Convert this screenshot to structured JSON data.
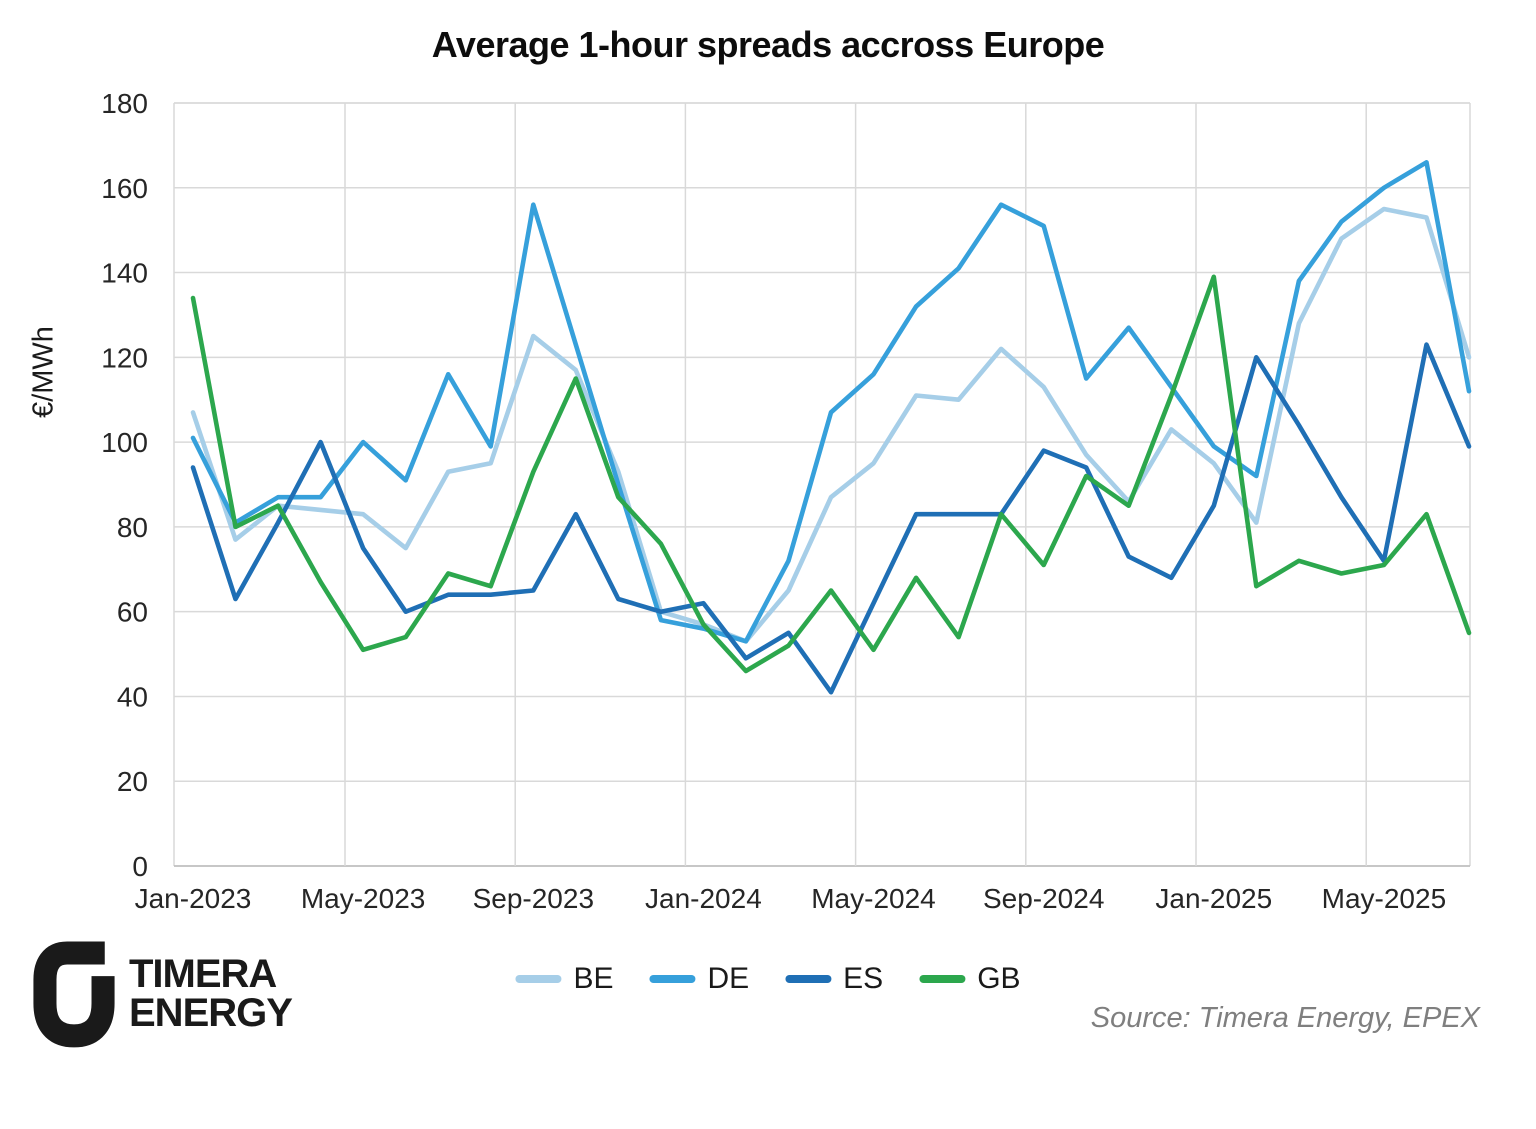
{
  "logo": {
    "line1": "TIMERA",
    "line2": "ENERGY"
  },
  "source_note": "Source: Timera Energy, EPEX",
  "colors": {
    "grid": "#d9d9d9",
    "axis": "#bfbfbf",
    "tick_text": "#262626",
    "title_text": "#0d0d0d",
    "source_text": "#7f7f7f",
    "logo_text": "#1a1a1a"
  },
  "chart_data": {
    "type": "line",
    "title": "Average 1-hour spreads accross Europe",
    "xlabel": "",
    "ylabel": "€/MWh",
    "ylim": [
      0,
      180
    ],
    "ytick_step": 20,
    "grid": true,
    "legend_position": "bottom",
    "categories": [
      "Jan-2023",
      "Feb-2023",
      "Mar-2023",
      "Apr-2023",
      "May-2023",
      "Jun-2023",
      "Jul-2023",
      "Aug-2023",
      "Sep-2023",
      "Oct-2023",
      "Nov-2023",
      "Dec-2023",
      "Jan-2024",
      "Feb-2024",
      "Mar-2024",
      "Apr-2024",
      "May-2024",
      "Jun-2024",
      "Jul-2024",
      "Aug-2024",
      "Sep-2024",
      "Oct-2024",
      "Nov-2024",
      "Dec-2024",
      "Jan-2025",
      "Feb-2025",
      "Mar-2025",
      "Apr-2025",
      "May-2025",
      "Jun-2025",
      "Jul-2025"
    ],
    "xtick_labels": [
      "Jan-2023",
      "May-2023",
      "Sep-2023",
      "Jan-2024",
      "May-2024",
      "Sep-2024",
      "Jan-2025",
      "May-2025"
    ],
    "xtick_indices": [
      0,
      4,
      8,
      12,
      16,
      20,
      24,
      28
    ],
    "series": [
      {
        "name": "BE",
        "color": "#A6CEE8",
        "values": [
          107,
          77,
          85,
          84,
          83,
          75,
          93,
          95,
          125,
          117,
          93,
          60,
          57,
          53,
          65,
          87,
          95,
          111,
          110,
          122,
          113,
          97,
          86,
          103,
          95,
          81,
          128,
          148,
          155,
          153,
          120
        ]
      },
      {
        "name": "DE",
        "color": "#36A0DB",
        "values": [
          101,
          81,
          87,
          87,
          100,
          91,
          116,
          99,
          156,
          123,
          90,
          58,
          56,
          53,
          72,
          107,
          116,
          132,
          141,
          156,
          151,
          115,
          127,
          113,
          99,
          92,
          138,
          152,
          160,
          166,
          112
        ]
      },
      {
        "name": "ES",
        "color": "#1F6FB5",
        "values": [
          94,
          63,
          81,
          100,
          75,
          60,
          64,
          64,
          65,
          83,
          63,
          60,
          62,
          49,
          55,
          41,
          62,
          83,
          83,
          83,
          98,
          94,
          73,
          68,
          85,
          120,
          104,
          87,
          72,
          123,
          99
        ]
      },
      {
        "name": "GB",
        "color": "#2CA74D",
        "values": [
          134,
          80,
          85,
          67,
          51,
          54,
          69,
          66,
          93,
          115,
          87,
          76,
          57,
          46,
          52,
          65,
          51,
          68,
          54,
          83,
          71,
          92,
          85,
          111,
          139,
          66,
          72,
          69,
          71,
          83,
          55
        ]
      }
    ]
  }
}
